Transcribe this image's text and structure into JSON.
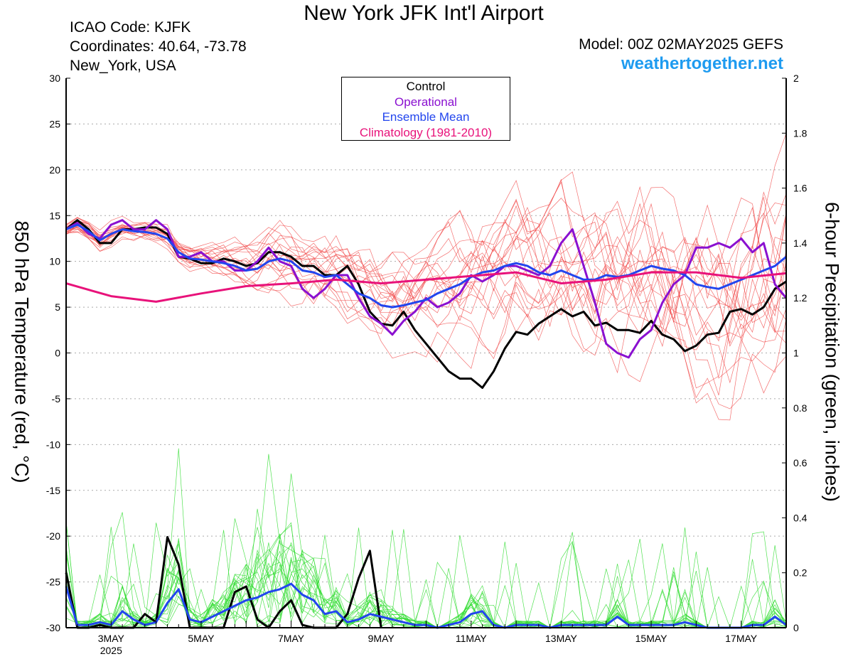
{
  "header": {
    "title": "New York JFK Int'l Airport",
    "icao": "ICAO Code: KJFK",
    "coords": "Coordinates: 40.64, -73.78",
    "place": "New_York, USA",
    "model": "Model: 00Z 02MAY2025 GEFS",
    "site": "weathertogether.net"
  },
  "chart_data": {
    "type": "line",
    "ylabel_left": "850 hPa Temperature (red, °C)",
    "ylabel_right": "6-hour Precipitation (green, inches)",
    "x_tick_labels": [
      "3MAY",
      "5MAY",
      "7MAY",
      "9MAY",
      "11MAY",
      "13MAY",
      "15MAY",
      "17MAY"
    ],
    "x_tick_days": [
      3,
      5,
      7,
      9,
      11,
      13,
      15,
      17
    ],
    "x_year_label": "2025",
    "xlim_days": [
      2.0,
      18.0
    ],
    "ylim_left": [
      -30,
      30
    ],
    "yticks_left": [
      "30",
      "25",
      "20",
      "15",
      "10",
      "5",
      "0",
      "-5",
      "-10",
      "-15",
      "-20",
      "-25",
      "-30"
    ],
    "ylim_right": [
      0,
      2
    ],
    "yticks_right": [
      "2",
      "1.8",
      "1.6",
      "1.4",
      "1.2",
      "1",
      "0.8",
      "0.6",
      "0.4",
      "0.2",
      "0"
    ],
    "legend": [
      {
        "label": "Control",
        "color": "#000000"
      },
      {
        "label": "Operational",
        "color": "#8a10d0"
      },
      {
        "label": "Ensemble Mean",
        "color": "#2245ee"
      },
      {
        "label": "Climatology (1981-2010)",
        "color": "#e8127a"
      }
    ],
    "series": [
      {
        "name": "Control",
        "kind": "temperature",
        "color": "#000000",
        "x": [
          2.0,
          2.25,
          2.5,
          2.75,
          3.0,
          3.25,
          3.5,
          3.75,
          4.0,
          4.25,
          4.5,
          4.75,
          5.0,
          5.25,
          5.5,
          5.75,
          6.0,
          6.25,
          6.5,
          6.75,
          7.0,
          7.25,
          7.5,
          7.75,
          8.0,
          8.25,
          8.5,
          8.75,
          9.0,
          9.25,
          9.5,
          9.75,
          10.0,
          10.25,
          10.5,
          10.75,
          11.0,
          11.25,
          11.5,
          11.75,
          12.0,
          12.25,
          12.5,
          12.75,
          13.0,
          13.25,
          13.5,
          13.75,
          14.0,
          14.25,
          14.5,
          14.75,
          15.0,
          15.25,
          15.5,
          15.75,
          16.0,
          16.25,
          16.5,
          16.75,
          17.0,
          17.25,
          17.5,
          17.75,
          18.0
        ],
        "y": [
          13.5,
          14.5,
          13.5,
          12.0,
          12.0,
          13.5,
          13.5,
          13.7,
          13.7,
          13.0,
          10.5,
          10.3,
          9.8,
          9.8,
          10.3,
          10.0,
          9.5,
          9.8,
          11.0,
          11.0,
          10.5,
          9.5,
          9.5,
          8.5,
          8.5,
          9.5,
          7.5,
          4.5,
          3.2,
          3.0,
          4.5,
          2.5,
          1.0,
          -0.5,
          -2.0,
          -2.8,
          -2.8,
          -3.8,
          -2.0,
          0.5,
          2.3,
          2.0,
          3.2,
          4.0,
          4.8,
          4.0,
          4.5,
          3.0,
          3.3,
          2.5,
          2.5,
          2.2,
          3.5,
          2.0,
          1.5,
          0.2,
          0.8,
          2.0,
          2.2,
          4.5,
          4.8,
          4.2,
          5.0,
          7.0,
          7.8
        ]
      },
      {
        "name": "Operational",
        "kind": "temperature",
        "color": "#8a10d0",
        "x": [
          2.0,
          2.25,
          2.5,
          2.75,
          3.0,
          3.25,
          3.5,
          3.75,
          4.0,
          4.25,
          4.5,
          4.75,
          5.0,
          5.25,
          5.5,
          5.75,
          6.0,
          6.25,
          6.5,
          6.75,
          7.0,
          7.25,
          7.5,
          7.75,
          8.0,
          8.25,
          8.5,
          8.75,
          9.0,
          9.25,
          9.5,
          9.75,
          10.0,
          10.25,
          10.5,
          10.75,
          11.0,
          11.25,
          11.5,
          11.75,
          12.0,
          12.25,
          12.5,
          12.75,
          13.0,
          13.25,
          13.5,
          13.75,
          14.0,
          14.25,
          14.5,
          14.75,
          15.0,
          15.25,
          15.5,
          15.75,
          16.0,
          16.25,
          16.5,
          16.75,
          17.0,
          17.25,
          17.5,
          17.75,
          18.0
        ],
        "y": [
          13.5,
          14.2,
          13.0,
          12.5,
          14.0,
          14.5,
          13.5,
          13.5,
          14.5,
          13.5,
          10.5,
          10.5,
          11.0,
          10.0,
          10.0,
          9.0,
          9.0,
          10.0,
          11.5,
          10.0,
          9.5,
          7.0,
          6.0,
          7.0,
          8.5,
          8.5,
          6.0,
          4.0,
          3.2,
          2.0,
          3.5,
          4.5,
          6.0,
          5.0,
          5.5,
          6.5,
          8.5,
          7.8,
          8.5,
          9.5,
          9.5,
          9.0,
          8.5,
          9.5,
          12.0,
          13.5,
          9.5,
          5.5,
          1.0,
          0.0,
          -0.5,
          1.5,
          2.5,
          5.5,
          7.5,
          8.5,
          11.5,
          11.5,
          12.0,
          11.5,
          12.5,
          11.0,
          12.0,
          7.5,
          6.0
        ]
      },
      {
        "name": "Ensemble Mean",
        "kind": "temperature",
        "color": "#2245ee",
        "x": [
          2.0,
          2.25,
          2.5,
          2.75,
          3.0,
          3.25,
          3.5,
          3.75,
          4.0,
          4.25,
          4.5,
          4.75,
          5.0,
          5.25,
          5.5,
          5.75,
          6.0,
          6.25,
          6.5,
          6.75,
          7.0,
          7.25,
          7.5,
          7.75,
          8.0,
          8.25,
          8.5,
          8.75,
          9.0,
          9.25,
          9.5,
          9.75,
          10.0,
          10.25,
          10.5,
          10.75,
          11.0,
          11.25,
          11.5,
          11.75,
          12.0,
          12.25,
          12.5,
          12.75,
          13.0,
          13.25,
          13.5,
          13.75,
          14.0,
          14.25,
          14.5,
          14.75,
          15.0,
          15.25,
          15.5,
          15.75,
          16.0,
          16.25,
          16.5,
          16.75,
          17.0,
          17.25,
          17.5,
          17.75,
          18.0
        ],
        "y": [
          13.5,
          14.0,
          13.3,
          12.3,
          13.0,
          13.5,
          13.3,
          13.2,
          13.0,
          12.5,
          11.0,
          10.3,
          10.2,
          10.0,
          9.8,
          9.5,
          9.0,
          9.2,
          10.0,
          10.3,
          10.0,
          9.0,
          8.8,
          8.3,
          8.5,
          7.5,
          6.5,
          6.0,
          5.2,
          5.0,
          5.2,
          5.5,
          5.8,
          6.5,
          7.0,
          7.5,
          8.3,
          8.8,
          9.0,
          9.5,
          9.8,
          9.5,
          8.8,
          8.5,
          9.0,
          8.5,
          8.0,
          8.0,
          8.5,
          8.3,
          8.5,
          9.0,
          9.5,
          9.2,
          9.0,
          8.5,
          7.5,
          7.2,
          7.0,
          7.5,
          8.0,
          8.5,
          9.0,
          9.5,
          10.5
        ]
      },
      {
        "name": "Climatology (1981-2010)",
        "kind": "temperature",
        "color": "#e8127a",
        "x": [
          2.0,
          3.0,
          4.0,
          5.0,
          6.0,
          7.0,
          8.0,
          9.0,
          10.0,
          11.0,
          12.0,
          13.0,
          14.0,
          15.0,
          16.0,
          17.0,
          18.0
        ],
        "y": [
          7.6,
          6.2,
          5.6,
          6.5,
          7.3,
          7.6,
          8.0,
          7.6,
          8.0,
          8.4,
          8.8,
          7.6,
          8.0,
          8.8,
          8.8,
          8.2,
          8.7
        ]
      },
      {
        "name": "Control",
        "kind": "precipitation",
        "color": "#000000",
        "x": [
          2.0,
          2.25,
          2.5,
          2.75,
          3.0,
          3.25,
          3.5,
          3.75,
          4.0,
          4.25,
          4.5,
          4.75,
          5.0,
          5.25,
          5.5,
          5.75,
          6.0,
          6.25,
          6.5,
          6.75,
          7.0,
          7.25,
          7.5,
          7.75,
          8.0,
          8.25,
          8.5,
          8.75,
          9.0
        ],
        "y": [
          0.2,
          0.0,
          0.0,
          0.01,
          0.0,
          0.0,
          0.0,
          0.05,
          0.02,
          0.33,
          0.23,
          0.0,
          0.0,
          0.0,
          0.0,
          0.13,
          0.15,
          0.03,
          0.0,
          0.06,
          0.1,
          0.01,
          0.0,
          0.0,
          0.0,
          0.05,
          0.18,
          0.28,
          0.0
        ]
      },
      {
        "name": "Ensemble Mean",
        "kind": "precipitation",
        "color": "#2245ee",
        "x": [
          2.0,
          2.25,
          2.5,
          2.75,
          3.0,
          3.25,
          3.5,
          3.75,
          4.0,
          4.25,
          4.5,
          4.75,
          5.0,
          5.25,
          5.5,
          5.75,
          6.0,
          6.25,
          6.5,
          6.75,
          7.0,
          7.25,
          7.5,
          7.75,
          8.0,
          8.25,
          8.5,
          8.75,
          9.0,
          9.25,
          9.5,
          9.75,
          10.0,
          10.25,
          10.5,
          10.75,
          11.0,
          11.25,
          11.5,
          11.75,
          12.0,
          12.25,
          12.5,
          12.75,
          13.0,
          13.25,
          13.5,
          13.75,
          14.0,
          14.25,
          14.5,
          14.75,
          15.0,
          15.25,
          15.5,
          15.75,
          16.0,
          16.25,
          16.5,
          16.75,
          17.0,
          17.25,
          17.5,
          17.75,
          18.0
        ],
        "y": [
          0.15,
          0.01,
          0.01,
          0.02,
          0.01,
          0.06,
          0.03,
          0.01,
          0.02,
          0.09,
          0.14,
          0.03,
          0.02,
          0.04,
          0.06,
          0.08,
          0.1,
          0.11,
          0.13,
          0.14,
          0.16,
          0.12,
          0.1,
          0.05,
          0.06,
          0.02,
          0.03,
          0.05,
          0.04,
          0.03,
          0.02,
          0.01,
          0.01,
          0.0,
          0.01,
          0.02,
          0.05,
          0.06,
          0.01,
          0.0,
          0.01,
          0.01,
          0.01,
          0.0,
          0.01,
          0.01,
          0.01,
          0.01,
          0.01,
          0.04,
          0.01,
          0.01,
          0.01,
          0.01,
          0.01,
          0.02,
          0.01,
          0.0,
          0.0,
          0.0,
          0.0,
          0.01,
          0.01,
          0.04,
          0.01
        ]
      }
    ]
  }
}
